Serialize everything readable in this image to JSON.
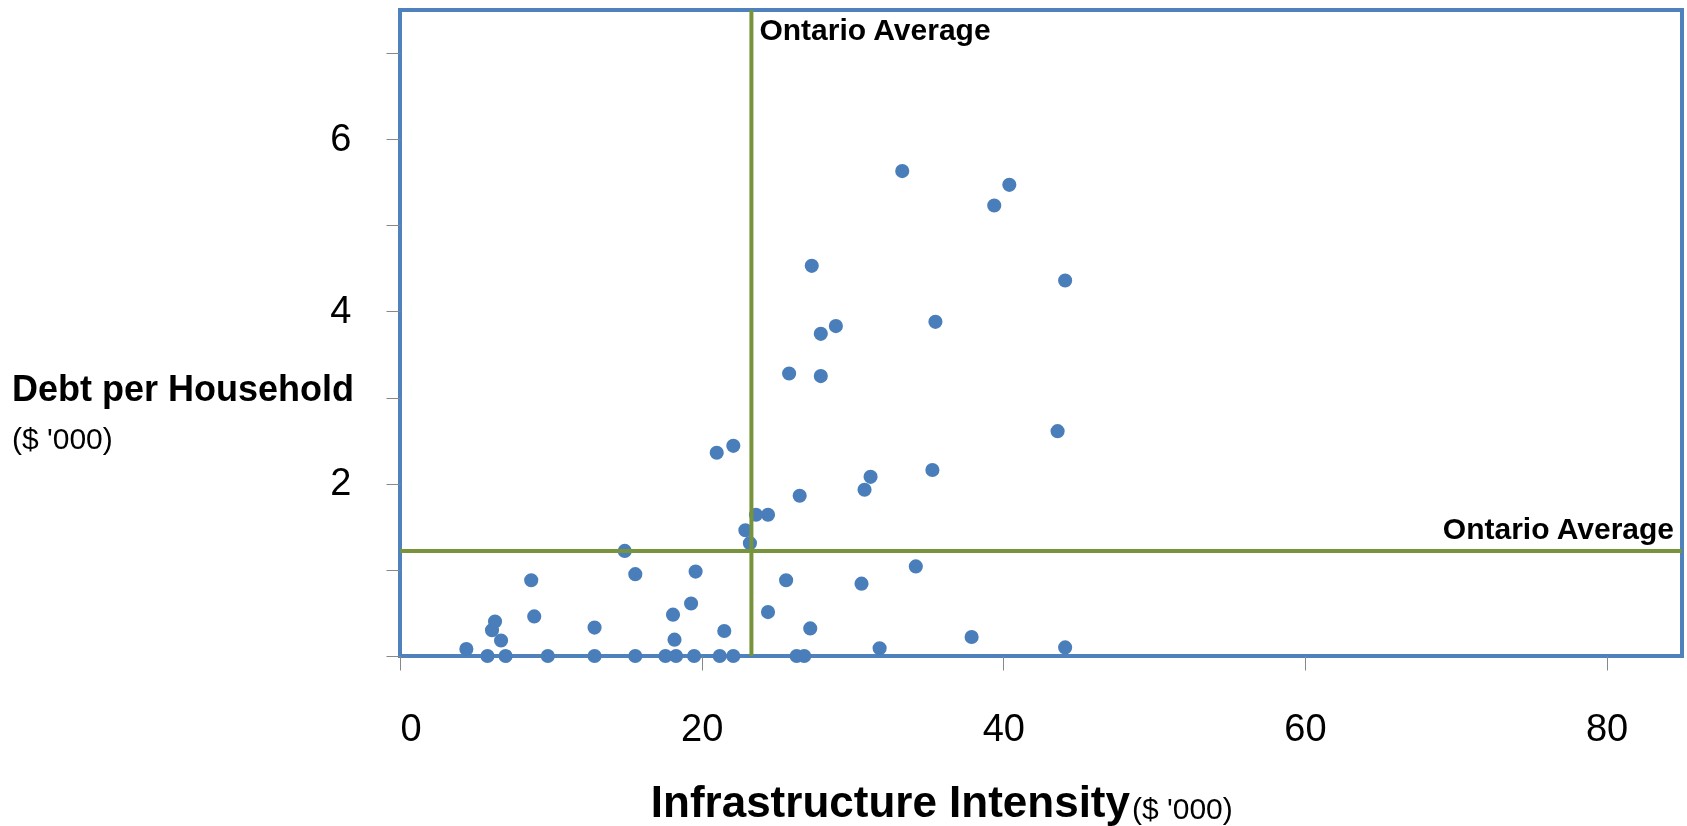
{
  "chart_data": {
    "type": "scatter",
    "xlabel": "Infrastructure Intensity",
    "ylabel": "Debt per Household",
    "annotations": [
      "($ '000)",
      "($ '000)"
    ],
    "marker": "circle",
    "xlim": [
      0,
      85
    ],
    "ylim": [
      0,
      7.5
    ],
    "xticks": [
      0,
      20,
      40,
      60,
      80
    ],
    "yticks": [
      {
        "value": 0,
        "label": null
      },
      {
        "value": 1,
        "label": null
      },
      2,
      {
        "value": 3,
        "label": null
      },
      4,
      {
        "value": 5,
        "label": null
      },
      6,
      {
        "value": 7,
        "label": null
      }
    ],
    "ref_lines": [
      {
        "axis": "x",
        "value": 23.3,
        "label": "Ontario Average",
        "color": "#77933c"
      },
      {
        "axis": "y",
        "value": 1.22,
        "label": "Ontario Average",
        "color": "#77933c"
      }
    ],
    "series": [
      {
        "color": "#4a7ebb",
        "x": [
          4.4,
          5.8,
          6.1,
          6.3,
          6.7,
          7.0,
          8.7,
          8.9,
          9.8,
          12.9,
          12.9,
          14.9,
          15.6,
          15.6,
          17.6,
          18.1,
          18.2,
          18.3,
          19.3,
          19.6,
          19.5,
          21.0,
          21.5,
          21.2,
          22.1,
          22.1,
          22.9,
          23.2,
          23.6,
          24.4,
          24.4,
          25.6,
          25.8,
          26.3,
          26.5,
          26.8,
          27.3,
          27.2,
          27.9,
          27.9,
          28.9,
          30.6,
          30.8,
          31.2,
          31.8,
          33.3,
          34.2,
          35.3,
          35.5,
          37.9,
          39.4,
          40.4,
          43.6,
          44.1,
          44.1
        ],
        "values": [
          0.08,
          0,
          0.3,
          0.4,
          0.18,
          0,
          0.88,
          0.46,
          0,
          0.33,
          0,
          1.22,
          0.95,
          0,
          0,
          0.48,
          0.19,
          0,
          0.61,
          0.98,
          0,
          2.36,
          0.29,
          0,
          2.44,
          0,
          1.46,
          1.31,
          1.64,
          1.64,
          0.51,
          0.88,
          3.28,
          0,
          1.86,
          0,
          4.53,
          0.32,
          3.74,
          3.25,
          3.83,
          0.84,
          1.93,
          2.08,
          0.09,
          5.63,
          1.04,
          2.16,
          3.88,
          0.22,
          5.23,
          5.47,
          2.61,
          4.36,
          0.1
        ]
      }
    ]
  }
}
